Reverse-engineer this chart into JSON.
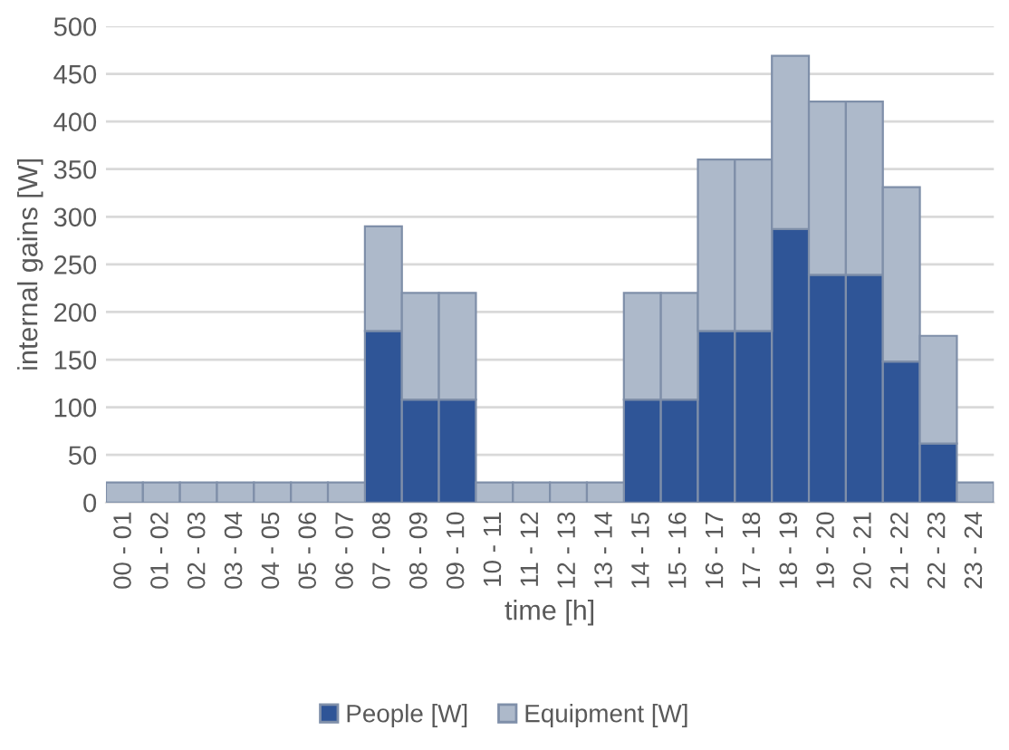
{
  "chart_data": {
    "type": "bar",
    "stacked": true,
    "xlabel": "time [h]",
    "ylabel": "internal gains [W]",
    "categories": [
      "00 - 01",
      "01 - 02",
      "02 - 03",
      "03 - 04",
      "04 - 05",
      "05 - 06",
      "06 - 07",
      "07 - 08",
      "08 - 09",
      "09 - 10",
      "10 - 11",
      "11 - 12",
      "12 - 13",
      "13 - 14",
      "14 - 15",
      "15 - 16",
      "16 - 17",
      "17 - 18",
      "18 - 19",
      "19 - 20",
      "20 - 21",
      "21 - 22",
      "22 - 23",
      "23 - 24"
    ],
    "series": [
      {
        "name": "People [W]",
        "color": "#2f5597",
        "values": [
          0,
          0,
          0,
          0,
          0,
          0,
          0,
          180,
          108,
          108,
          0,
          0,
          0,
          0,
          108,
          108,
          180,
          180,
          287,
          239,
          239,
          148,
          62,
          0
        ]
      },
      {
        "name": "Equipment [W]",
        "color": "#adb9ca",
        "values": [
          21,
          21,
          21,
          21,
          21,
          21,
          21,
          110,
          112,
          112,
          21,
          21,
          21,
          21,
          112,
          112,
          180,
          180,
          182,
          182,
          182,
          183,
          113,
          21
        ]
      }
    ],
    "ylim": [
      0,
      500
    ],
    "yticks": [
      0,
      50,
      100,
      150,
      200,
      250,
      300,
      350,
      400,
      450,
      500
    ],
    "grid": "y",
    "legend": "bottom"
  }
}
